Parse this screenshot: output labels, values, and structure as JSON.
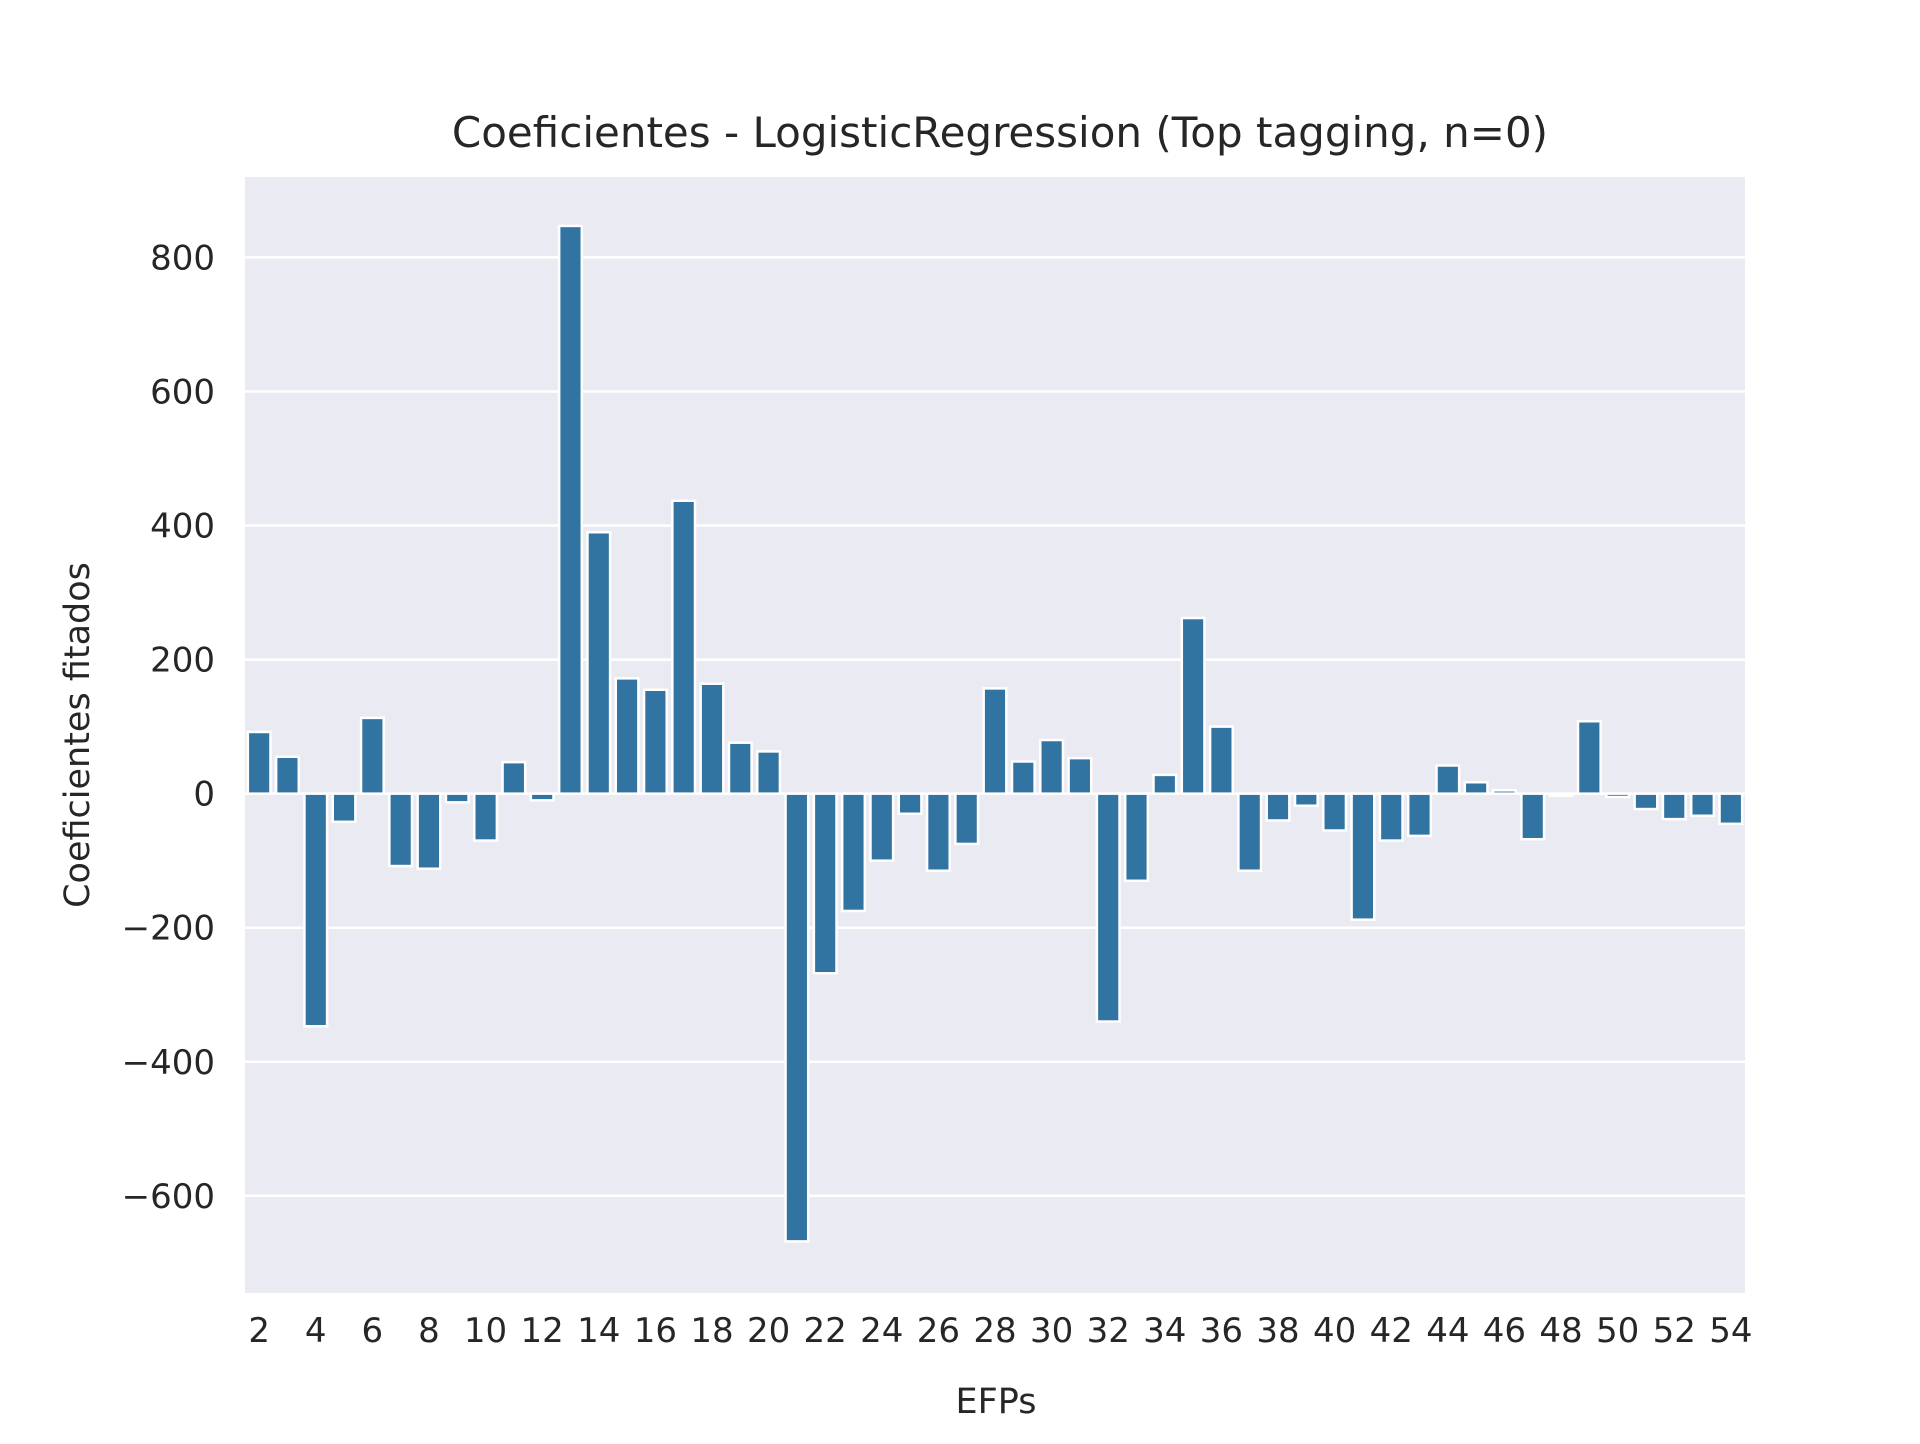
{
  "chart_data": {
    "type": "bar",
    "title": "Coeficientes - LogisticRegression (Top tagging, n=0)",
    "xlabel": "EFPs",
    "ylabel": "Coeficientes fitados",
    "ylim": [
      -745,
      920
    ],
    "yticks": [
      800,
      600,
      400,
      200,
      0,
      -200,
      -400,
      -600
    ],
    "ytick_labels": [
      "800",
      "600",
      "400",
      "200",
      "0",
      "−200",
      "−400",
      "−600"
    ],
    "grid": true,
    "legend": "none",
    "categories": [
      2,
      3,
      4,
      5,
      6,
      7,
      8,
      9,
      10,
      11,
      12,
      13,
      14,
      15,
      16,
      17,
      18,
      19,
      20,
      21,
      22,
      23,
      24,
      25,
      26,
      27,
      28,
      29,
      30,
      31,
      32,
      33,
      34,
      35,
      36,
      37,
      38,
      39,
      40,
      41,
      42,
      43,
      44,
      45,
      46,
      47,
      48,
      49,
      50,
      51,
      52,
      53,
      54
    ],
    "visible_tick_labels": [
      "2",
      "4",
      "6",
      "8",
      "10",
      "12",
      "14",
      "16",
      "18",
      "20",
      "22",
      "24",
      "26",
      "28",
      "30",
      "32",
      "34",
      "36",
      "38",
      "40",
      "42",
      "44",
      "46",
      "48",
      "50",
      "52",
      "54"
    ],
    "values": [
      92,
      55,
      -347,
      -42,
      113,
      -108,
      -112,
      -13,
      -70,
      47,
      -10,
      847,
      390,
      172,
      155,
      437,
      164,
      76,
      63,
      -668,
      -268,
      -175,
      -100,
      -30,
      -115,
      -75,
      157,
      48,
      80,
      53,
      -340,
      -130,
      28,
      262,
      100,
      -115,
      -40,
      -18,
      -55,
      -188,
      -70,
      -63,
      42,
      17,
      5,
      -68,
      -3,
      108,
      -5,
      -23,
      -38,
      -33,
      -45
    ],
    "colors": {
      "bar": "#3274a1",
      "bar_edge": "#ffffff",
      "plot_bg": "#eaeaf2",
      "grid": "#ffffff",
      "text": "#262626"
    }
  }
}
